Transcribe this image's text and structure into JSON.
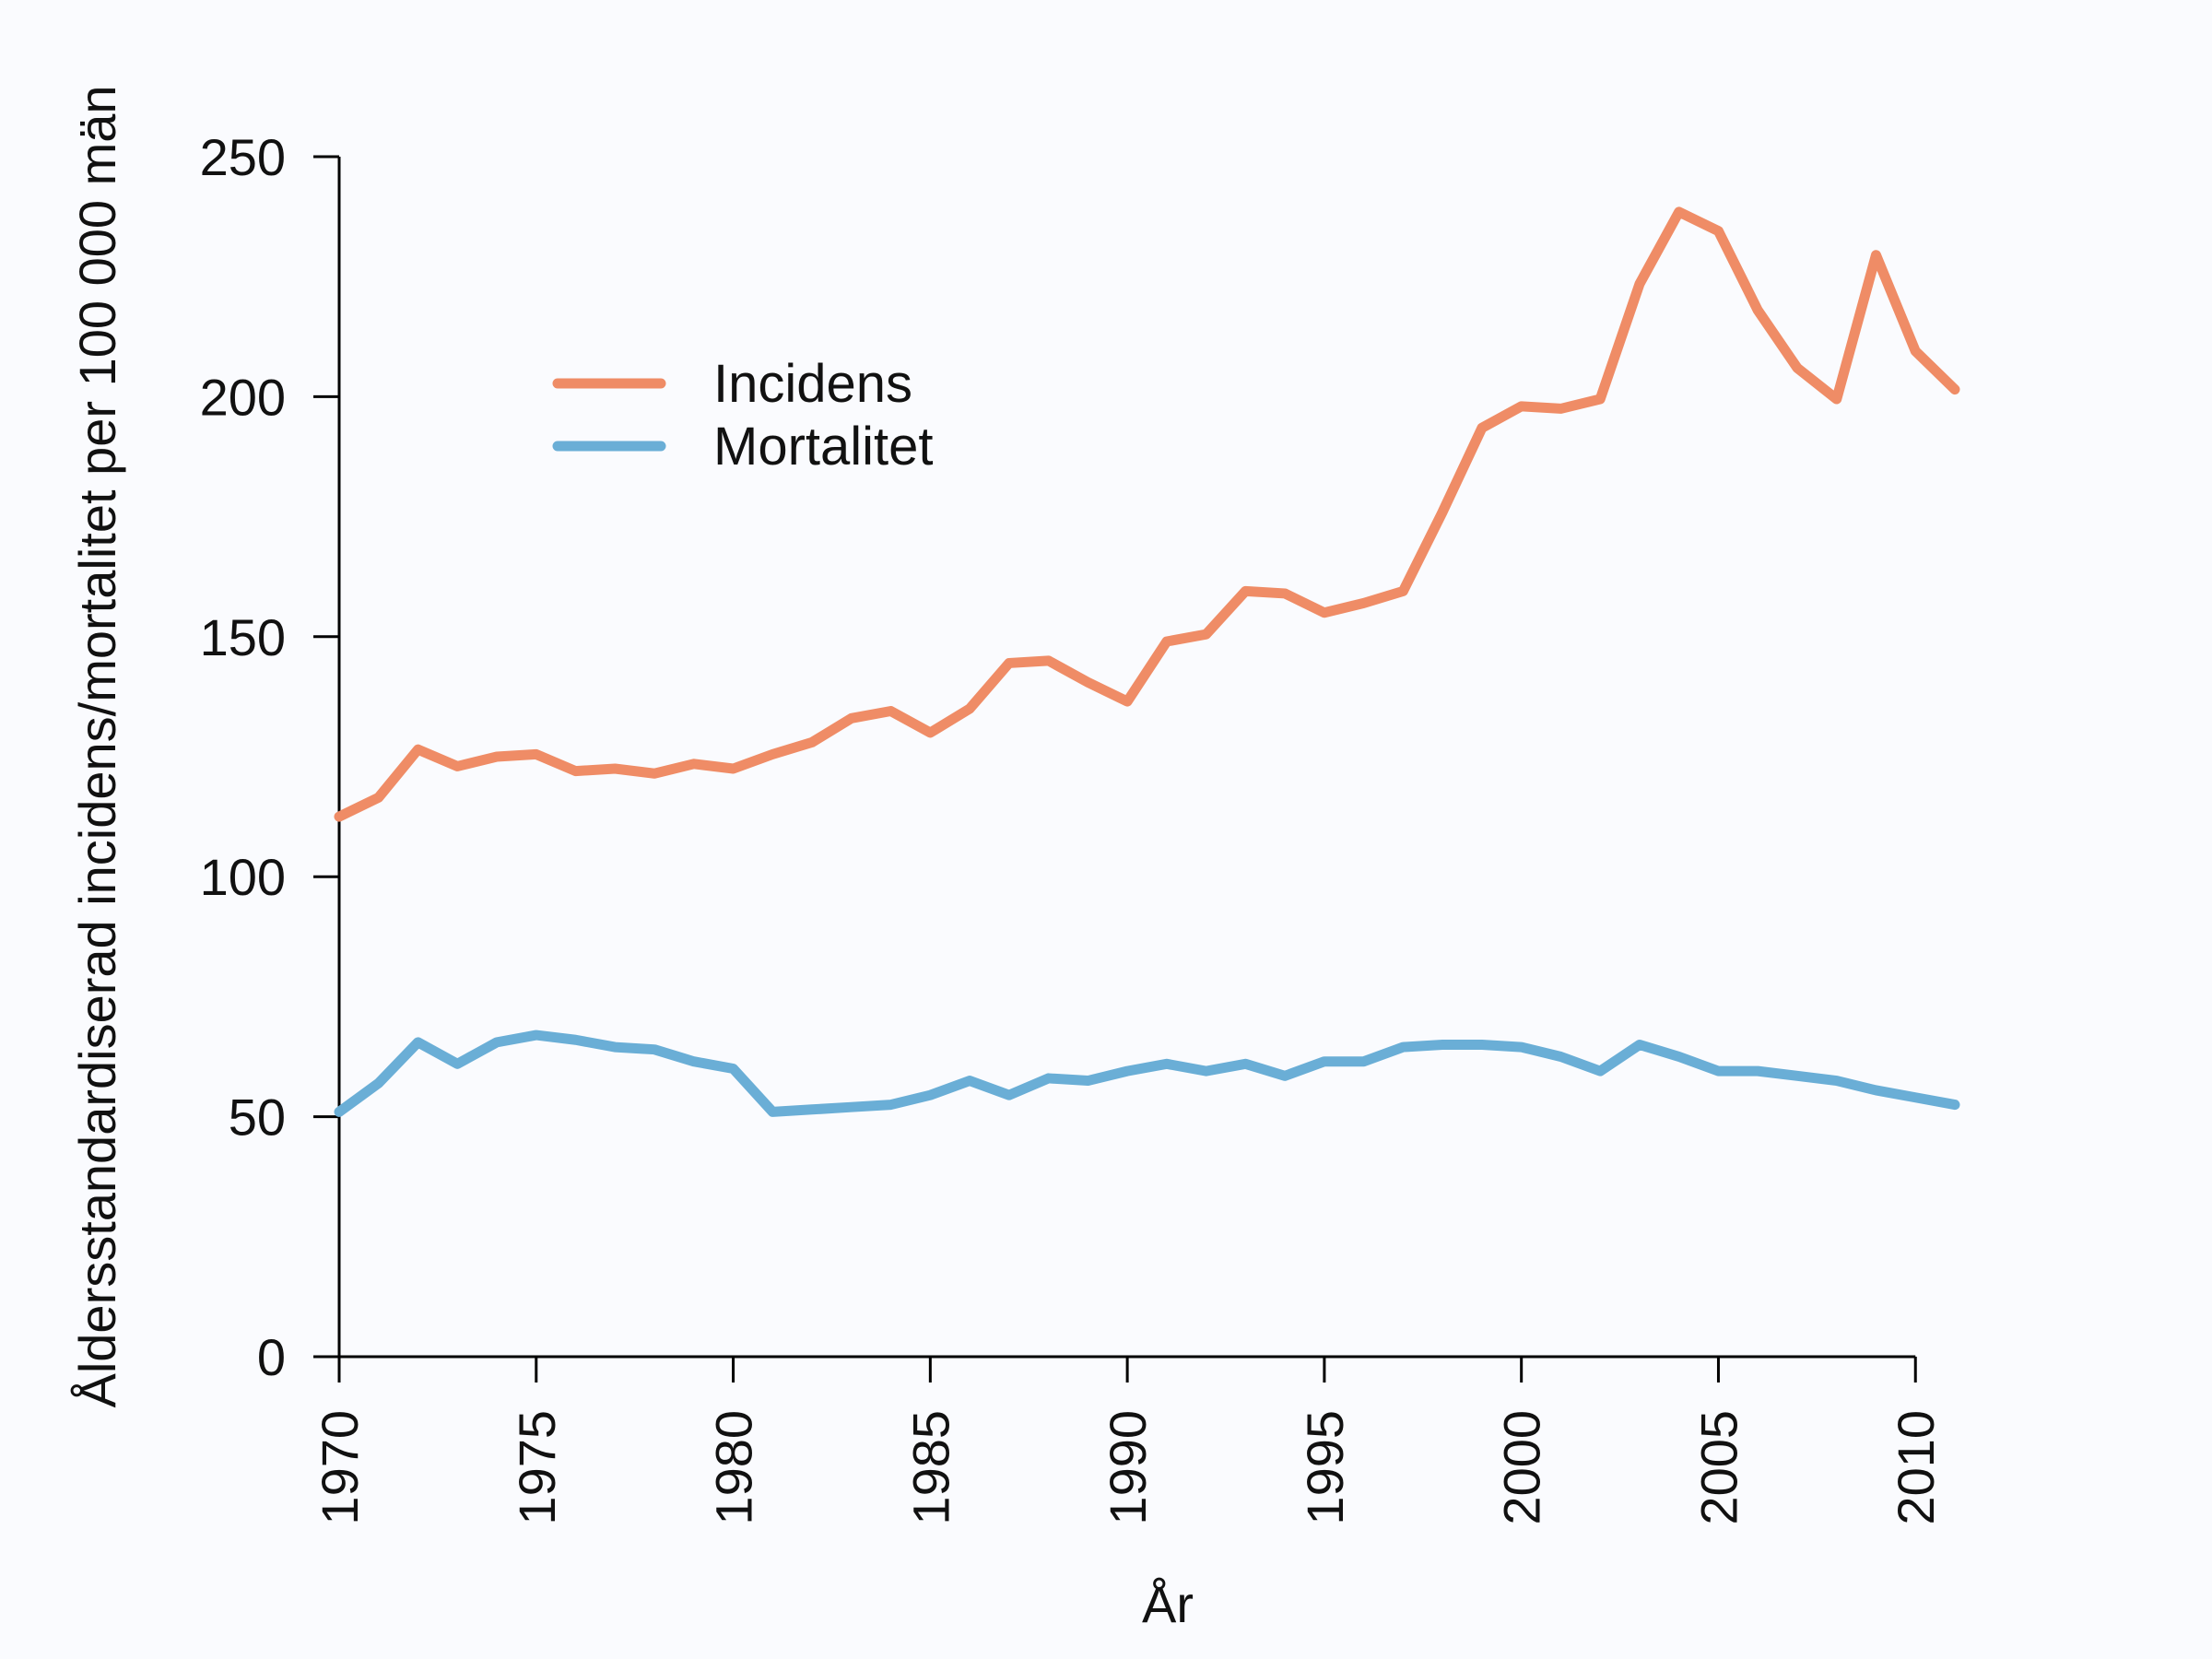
{
  "chart_data": {
    "type": "line",
    "title": "",
    "xlabel": "År",
    "ylabel": "Åldersstandardiserad incidens/mortalitet per 100 000 män",
    "xlim": [
      1970,
      2011
    ],
    "ylim": [
      0,
      250
    ],
    "xticks": [
      "1970",
      "1975",
      "1980",
      "1985",
      "1990",
      "1995",
      "2000",
      "2005",
      "2010"
    ],
    "yticks": [
      "0",
      "50",
      "100",
      "150",
      "200",
      "250"
    ],
    "grid": false,
    "legend_position": "top-left",
    "x": [
      1970,
      1971,
      1972,
      1973,
      1974,
      1975,
      1976,
      1977,
      1978,
      1979,
      1980,
      1981,
      1982,
      1983,
      1984,
      1985,
      1986,
      1987,
      1988,
      1989,
      1990,
      1991,
      1992,
      1993,
      1994,
      1995,
      1996,
      1997,
      1998,
      1999,
      2000,
      2001,
      2002,
      2003,
      2004,
      2005,
      2006,
      2007,
      2008,
      2009,
      2010,
      2011
    ],
    "series": [
      {
        "name": "Incidens",
        "color": "#ef8c66",
        "values": [
          112.5,
          116.5,
          126.5,
          123,
          125,
          125.5,
          122,
          122.5,
          121.5,
          123.5,
          122.5,
          125.5,
          128,
          133,
          134.5,
          130,
          135,
          144.5,
          145,
          140.5,
          136.5,
          149,
          150.5,
          159.5,
          159,
          155,
          157,
          159.5,
          176,
          193.5,
          198,
          197.5,
          199.5,
          223.5,
          238.5,
          234.5,
          218,
          206,
          199.5,
          229.5,
          209.5,
          201.5
        ]
      },
      {
        "name": "Mortalitet",
        "color": "#6aaed6",
        "values": [
          51,
          57,
          65.5,
          61,
          65.5,
          67,
          66,
          64.5,
          64,
          61.5,
          60,
          51,
          51.5,
          52,
          52.5,
          54.5,
          57.5,
          54.5,
          58,
          57.5,
          59.5,
          61,
          59.5,
          61,
          58.5,
          61.5,
          61.5,
          64.5,
          65,
          65,
          64.5,
          62.5,
          59.5,
          65,
          62.5,
          59.5,
          59.5,
          58.5,
          57.5,
          55.5,
          54,
          52.5
        ]
      }
    ]
  }
}
